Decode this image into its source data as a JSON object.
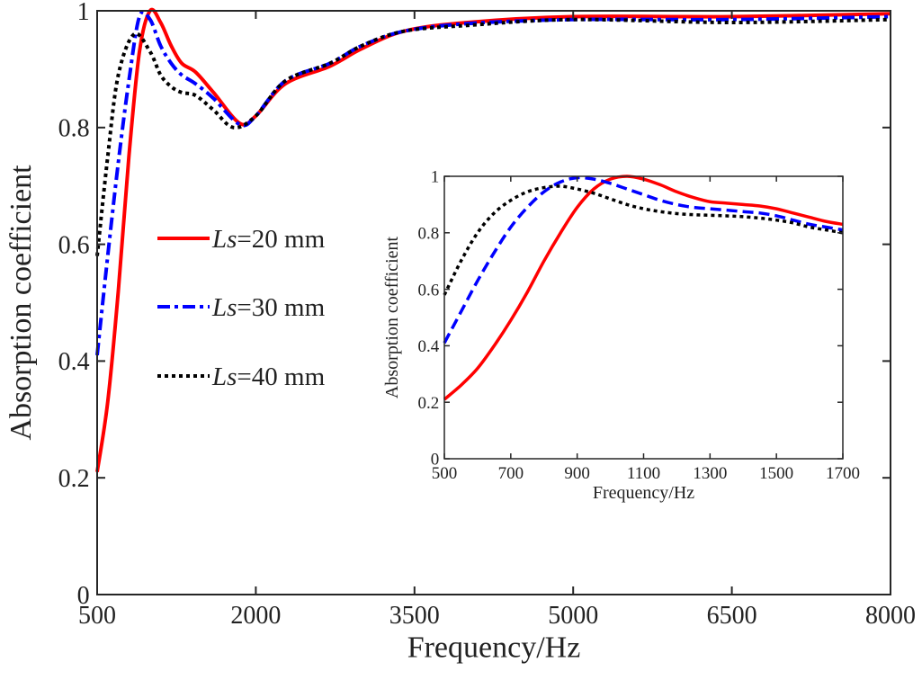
{
  "chart_data": [
    {
      "type": "line",
      "xlabel": "Frequency/Hz",
      "ylabel": "Absorption coefficient",
      "xlim": [
        500,
        8000
      ],
      "ylim": [
        0,
        1
      ],
      "xticks": [
        "500",
        "2000",
        "3500",
        "5000",
        "6500",
        "8000"
      ],
      "yticks": [
        "0",
        "0.2",
        "0.4",
        "0.6",
        "0.8",
        "1"
      ],
      "grid": false,
      "legend_placement": "center-left",
      "series": [
        {
          "name_italic": "Ls",
          "name_rest": "=20 mm",
          "color": "#ff0000",
          "style": "solid",
          "x": [
            500,
            600,
            700,
            800,
            900,
            1000,
            1100,
            1200,
            1300,
            1430,
            1600,
            1850,
            2000,
            2280,
            2700,
            3000,
            3400,
            4000,
            5000,
            6500,
            8000
          ],
          "y": [
            0.21,
            0.33,
            0.52,
            0.75,
            0.93,
            1.0,
            0.98,
            0.94,
            0.91,
            0.895,
            0.86,
            0.807,
            0.82,
            0.875,
            0.905,
            0.935,
            0.965,
            0.98,
            0.99,
            0.99,
            0.995
          ]
        },
        {
          "name_italic": "Ls",
          "name_rest": "=30 mm",
          "color": "#0000ff",
          "style": "dash-dot",
          "x": [
            500,
            600,
            700,
            800,
            900,
            1000,
            1100,
            1200,
            1300,
            1430,
            1600,
            1850,
            2000,
            2280,
            2700,
            3000,
            3400,
            4000,
            5000,
            6500,
            8000
          ],
          "y": [
            0.41,
            0.58,
            0.74,
            0.88,
            0.99,
            0.985,
            0.94,
            0.91,
            0.89,
            0.875,
            0.85,
            0.805,
            0.82,
            0.88,
            0.91,
            0.94,
            0.965,
            0.978,
            0.985,
            0.985,
            0.99
          ]
        },
        {
          "name_italic": "Ls",
          "name_rest": "=40 mm",
          "color": "#000000",
          "style": "dotted",
          "x": [
            500,
            600,
            700,
            850,
            1000,
            1100,
            1200,
            1300,
            1430,
            1600,
            1790,
            2000,
            2280,
            2700,
            3000,
            3400,
            4000,
            5000,
            6500,
            8000
          ],
          "y": [
            0.58,
            0.75,
            0.89,
            0.96,
            0.93,
            0.89,
            0.87,
            0.86,
            0.855,
            0.83,
            0.8,
            0.82,
            0.88,
            0.91,
            0.94,
            0.965,
            0.975,
            0.985,
            0.98,
            0.985
          ]
        }
      ]
    },
    {
      "type": "line",
      "role": "inset",
      "xlabel": "Frequency/Hz",
      "ylabel": "Absorption coefficient",
      "xlim": [
        500,
        1700
      ],
      "ylim": [
        0,
        1
      ],
      "xticks": [
        "500",
        "700",
        "900",
        "1100",
        "1300",
        "1500",
        "1700"
      ],
      "yticks": [
        "0",
        "0.2",
        "0.4",
        "0.6",
        "0.8",
        "1"
      ],
      "grid": false,
      "series": [
        {
          "color": "#ff0000",
          "style": "solid",
          "x": [
            500,
            550,
            600,
            650,
            700,
            750,
            800,
            850,
            900,
            950,
            1000,
            1050,
            1100,
            1150,
            1200,
            1250,
            1300,
            1350,
            1400,
            1450,
            1500,
            1550,
            1600,
            1650,
            1700
          ],
          "y": [
            0.21,
            0.26,
            0.32,
            0.4,
            0.49,
            0.59,
            0.7,
            0.8,
            0.89,
            0.955,
            0.99,
            1.0,
            0.99,
            0.97,
            0.945,
            0.925,
            0.91,
            0.905,
            0.9,
            0.895,
            0.885,
            0.87,
            0.855,
            0.84,
            0.83
          ]
        },
        {
          "color": "#0000ff",
          "style": "dashed",
          "x": [
            500,
            550,
            600,
            650,
            700,
            750,
            800,
            850,
            900,
            950,
            1000,
            1050,
            1100,
            1150,
            1200,
            1250,
            1300,
            1350,
            1400,
            1450,
            1500,
            1550,
            1600,
            1650,
            1700
          ],
          "y": [
            0.41,
            0.52,
            0.63,
            0.73,
            0.82,
            0.89,
            0.945,
            0.98,
            0.995,
            0.99,
            0.975,
            0.955,
            0.935,
            0.915,
            0.9,
            0.89,
            0.885,
            0.88,
            0.875,
            0.87,
            0.86,
            0.845,
            0.83,
            0.82,
            0.81
          ]
        },
        {
          "color": "#000000",
          "style": "dotted",
          "x": [
            500,
            550,
            600,
            650,
            700,
            750,
            800,
            850,
            900,
            950,
            1000,
            1050,
            1100,
            1150,
            1200,
            1250,
            1300,
            1350,
            1400,
            1450,
            1500,
            1550,
            1600,
            1650,
            1700
          ],
          "y": [
            0.58,
            0.7,
            0.8,
            0.87,
            0.915,
            0.945,
            0.96,
            0.965,
            0.955,
            0.94,
            0.92,
            0.9,
            0.885,
            0.875,
            0.868,
            0.864,
            0.862,
            0.86,
            0.857,
            0.852,
            0.845,
            0.835,
            0.82,
            0.81,
            0.8
          ]
        }
      ]
    }
  ]
}
